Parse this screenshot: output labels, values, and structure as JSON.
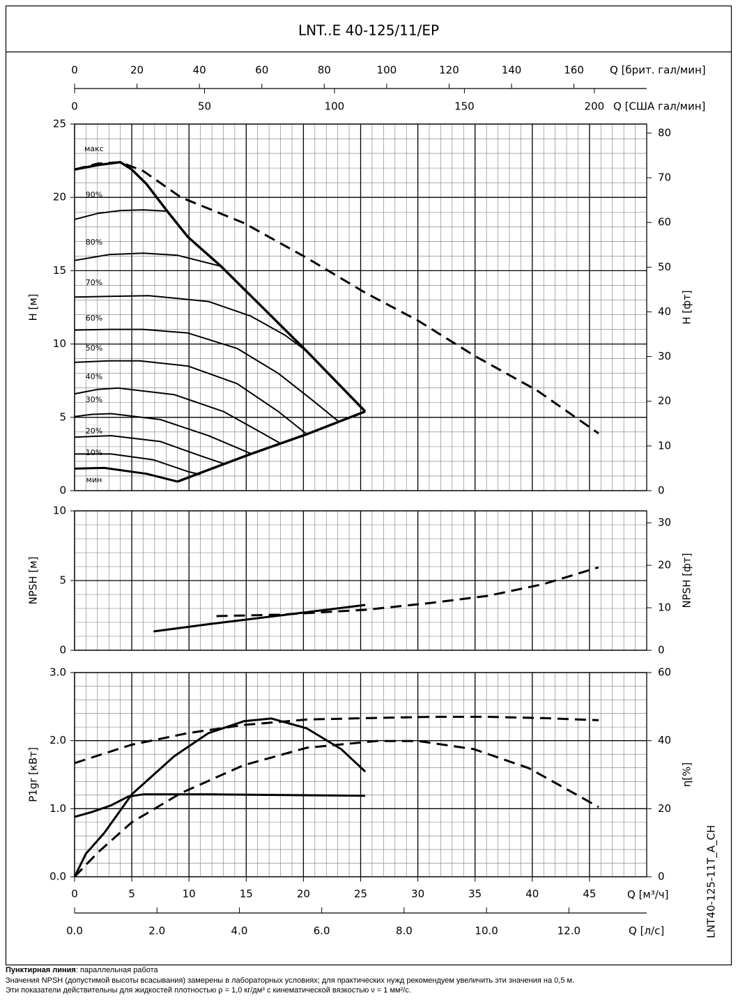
{
  "title": "LNT..E 40-125/11/EP",
  "chart_data": [
    {
      "type": "line",
      "color": "#000000",
      "ylabel": "H [м]",
      "y2label": "H [фт]",
      "grid": true,
      "xlim": [
        0,
        50
      ],
      "xticks": [
        0,
        5,
        10,
        15,
        20,
        25,
        30,
        35,
        40,
        45
      ],
      "minor_xticks": [
        1,
        2,
        3,
        4,
        6,
        7,
        8,
        9,
        11,
        12,
        13,
        14,
        16,
        17,
        18,
        19,
        21,
        22,
        23,
        24,
        26,
        27,
        28,
        29,
        31,
        32,
        33,
        34,
        36,
        37,
        38,
        39,
        41,
        42,
        43,
        44,
        46,
        47,
        48,
        49
      ],
      "ylim": [
        0,
        25
      ],
      "yticks": [
        0,
        5,
        10,
        15,
        20,
        25
      ],
      "minor_yticks": [
        1,
        2,
        3,
        4,
        6,
        7,
        8,
        9,
        11,
        12,
        13,
        14,
        16,
        17,
        18,
        19,
        21,
        22,
        23,
        24
      ],
      "y2lim": [
        0,
        82.02
      ],
      "y2ticks": [
        0,
        10,
        20,
        30,
        40,
        50,
        60,
        70,
        80
      ],
      "top_axes": [
        {
          "label": "Q [брит. гал/мин]",
          "lim": [
            0,
            183.31
          ],
          "ticks": [
            0,
            20,
            40,
            60,
            80,
            100,
            120,
            140,
            160
          ]
        },
        {
          "label": "Q [США гал/мин]",
          "lim": [
            0,
            220.15
          ],
          "ticks": [
            0,
            50,
            100,
            150,
            200
          ]
        }
      ],
      "series": [
        {
          "name": "макс",
          "x": [
            0,
            2,
            4,
            5,
            6.3
          ],
          "values": [
            21.9,
            22.2,
            22.4,
            21.9,
            20.9
          ],
          "width": 3.5,
          "dash": false
        },
        {
          "name": "90%",
          "x": [
            0,
            2,
            4,
            6,
            8.1
          ],
          "values": [
            18.5,
            18.9,
            19.1,
            19.15,
            19.06
          ],
          "width": 2,
          "dash": false
        },
        {
          "name": "80%",
          "x": [
            0,
            3,
            6,
            9,
            12.8
          ],
          "values": [
            15.7,
            16.1,
            16.2,
            16.05,
            15.3
          ],
          "width": 2,
          "dash": false
        },
        {
          "name": "70%",
          "x": [
            0,
            3,
            6.5,
            11.7,
            15.4,
            18.4,
            20.3
          ],
          "values": [
            13.2,
            13.25,
            13.3,
            12.9,
            11.9,
            10.6,
            9.5
          ],
          "width": 2,
          "dash": false
        },
        {
          "name": "60%",
          "x": [
            0,
            3,
            6,
            9.9,
            14.2,
            17.8,
            20.9,
            23.1
          ],
          "values": [
            10.95,
            11.0,
            11.0,
            10.75,
            9.7,
            8.0,
            6.1,
            4.7
          ],
          "width": 2,
          "dash": false
        },
        {
          "name": "50%",
          "x": [
            0,
            3,
            5.7,
            9.9,
            14.2,
            17.8,
            20.3
          ],
          "values": [
            8.75,
            8.85,
            8.85,
            8.5,
            7.3,
            5.4,
            3.85
          ],
          "width": 2,
          "dash": false
        },
        {
          "name": "40%",
          "x": [
            0,
            2,
            3.8,
            8.7,
            13,
            16,
            18
          ],
          "values": [
            6.6,
            6.9,
            7.0,
            6.55,
            5.4,
            4.1,
            3.22
          ],
          "width": 2,
          "dash": false
        },
        {
          "name": "30%",
          "x": [
            0,
            1.5,
            3.2,
            7.5,
            11.7,
            15.5
          ],
          "values": [
            5.05,
            5.2,
            5.25,
            4.85,
            3.75,
            2.5
          ],
          "width": 2,
          "dash": false
        },
        {
          "name": "20%",
          "x": [
            0,
            3.2,
            7.5,
            11.1,
            13.1
          ],
          "values": [
            3.65,
            3.75,
            3.35,
            2.35,
            1.82
          ],
          "width": 2,
          "dash": false
        },
        {
          "name": "10%",
          "x": [
            0,
            3.2,
            6.9,
            9.9,
            11
          ],
          "values": [
            2.5,
            2.5,
            2.1,
            1.3,
            1.1
          ],
          "width": 2,
          "dash": false
        },
        {
          "name": "мин",
          "x": [
            0,
            2.6,
            6.3,
            9
          ],
          "values": [
            1.5,
            1.55,
            1.15,
            0.62
          ],
          "width": 3,
          "dash": false
        },
        {
          "x": [
            0,
            2,
            4,
            6,
            9.3,
            14.8,
            20.3,
            25.4,
            30,
            34.9,
            40.4,
            45.8
          ],
          "values": [
            21.9,
            22.3,
            22.4,
            21.8,
            20.0,
            18.25,
            15.87,
            13.5,
            11.6,
            9.22,
            6.84,
            3.9
          ],
          "width": 3,
          "dash": true
        },
        {
          "x": [
            6.3,
            8.1,
            9.9,
            12.8,
            20.3,
            25.4
          ],
          "values": [
            20.9,
            19.06,
            17.3,
            15.3,
            9.5,
            5.4
          ],
          "width": 3.5,
          "dash": false
        },
        {
          "x": [
            9.0,
            10.8,
            15.4,
            20.3,
            25.4
          ],
          "values": [
            0.62,
            1.15,
            2.5,
            3.85,
            5.4
          ],
          "width": 3.5,
          "dash": false
        }
      ]
    },
    {
      "type": "line",
      "color": "#000000",
      "ylabel": "NPSH [м]",
      "y2label": "NPSH [фт]",
      "grid": true,
      "xlim": [
        0,
        50
      ],
      "xticks": [
        0,
        5,
        10,
        15,
        20,
        25,
        30,
        35,
        40,
        45
      ],
      "minor_xticks": [
        1,
        2,
        3,
        4,
        6,
        7,
        8,
        9,
        11,
        12,
        13,
        14,
        16,
        17,
        18,
        19,
        21,
        22,
        23,
        24,
        26,
        27,
        28,
        29,
        31,
        32,
        33,
        34,
        36,
        37,
        38,
        39,
        41,
        42,
        43,
        44,
        46,
        47,
        48,
        49
      ],
      "ylim": [
        0,
        10
      ],
      "yticks": [
        0,
        5,
        10
      ],
      "minor_yticks": [
        1,
        2,
        3,
        4,
        6,
        7,
        8,
        9
      ],
      "y2lim": [
        0,
        32.81
      ],
      "y2ticks": [
        0,
        10,
        20,
        30
      ],
      "series": [
        {
          "x": [
            6.9,
            12,
            18,
            25.4
          ],
          "values": [
            1.35,
            1.9,
            2.5,
            3.25
          ],
          "width": 3,
          "dash": false
        },
        {
          "x": [
            12.4,
            17.8,
            25.4,
            31.2,
            36.1,
            41,
            45.8
          ],
          "values": [
            2.45,
            2.55,
            2.9,
            3.4,
            3.9,
            4.75,
            5.95
          ],
          "width": 3,
          "dash": true
        }
      ]
    },
    {
      "type": "line",
      "color": "#000000",
      "ylabel": "P1gr [кВт]",
      "y2label": "η[%]",
      "xlabel": "Q [м³/ч]",
      "grid": true,
      "xlim": [
        0,
        50
      ],
      "xticks": [
        0,
        5,
        10,
        15,
        20,
        25,
        30,
        35,
        40,
        45
      ],
      "minor_xticks": [
        1,
        2,
        3,
        4,
        6,
        7,
        8,
        9,
        11,
        12,
        13,
        14,
        16,
        17,
        18,
        19,
        21,
        22,
        23,
        24,
        26,
        27,
        28,
        29,
        31,
        32,
        33,
        34,
        36,
        37,
        38,
        39,
        41,
        42,
        43,
        44,
        46,
        47,
        48,
        49
      ],
      "ylim": [
        0,
        3.0
      ],
      "yticks": [
        {
          "value": 0,
          "label": "0.0"
        },
        {
          "value": 1,
          "label": "1.0"
        },
        {
          "value": 2,
          "label": "2.0"
        },
        {
          "value": 3,
          "label": "3.0"
        }
      ],
      "minor_yticks": [
        0.2,
        0.4,
        0.6,
        0.8,
        1.2,
        1.4,
        1.6,
        1.8,
        2.2,
        2.4,
        2.6,
        2.8
      ],
      "y2lim": [
        0,
        60
      ],
      "y2ticks": [
        0,
        20,
        40,
        60
      ],
      "bottom_axes": [
        {
          "label": "Q [л/с]",
          "lim": [
            0,
            13.889
          ],
          "ticks": [
            {
              "value": 0,
              "label": "0.0"
            },
            {
              "value": 2,
              "label": "2.0"
            },
            {
              "value": 4,
              "label": "4.0"
            },
            {
              "value": 6,
              "label": "6.0"
            },
            {
              "value": 8,
              "label": "8.0"
            },
            {
              "value": 10,
              "label": "10.0"
            },
            {
              "value": 12,
              "label": "12.0"
            }
          ]
        }
      ],
      "series": [
        {
          "x": [
            0,
            1.5,
            3.2,
            4.7,
            6,
            11.7,
            25.4
          ],
          "values": [
            0.88,
            0.95,
            1.05,
            1.18,
            1.21,
            1.21,
            1.19
          ],
          "width": 3,
          "dash": false
        },
        {
          "x": [
            0,
            5,
            9.9,
            14.8,
            20.3,
            25.4,
            31.2,
            36.1,
            41,
            45.8
          ],
          "values": [
            1.67,
            1.94,
            2.11,
            2.23,
            2.31,
            2.33,
            2.35,
            2.35,
            2.33,
            2.3
          ],
          "width": 3,
          "dash": true
        },
        {
          "axis": "y2",
          "x": [
            0,
            1,
            2.6,
            5,
            8.7,
            11.7,
            14.8,
            17.2,
            20.3,
            23.3,
            25.4
          ],
          "values": [
            0,
            6.8,
            12.9,
            24.2,
            35.4,
            42.2,
            45.7,
            46.5,
            43.6,
            37.5,
            30.9
          ],
          "width": 3,
          "dash": false
        },
        {
          "axis": "y2",
          "x": [
            0,
            2,
            5,
            9.3,
            14.8,
            20.3,
            26.4,
            30,
            34.9,
            39.7,
            45.8
          ],
          "values": [
            0,
            7,
            16.0,
            24.6,
            32.8,
            37.9,
            39.9,
            39.9,
            37.5,
            31.9,
            20.5
          ],
          "width": 3,
          "dash": true
        }
      ]
    }
  ],
  "code": "LNT40-125-11T_A_CH",
  "footer": {
    "term": "Пунктирная линия",
    "term_text": ": параллельная работа",
    "notes": [
      "Значения NPSH (допустимой высоты всасывания) замерены в лабораторных условиях; для практических нужд рекомендуем увеличить эти значения на 0,5 м.",
      "Эти показатели действительны для жидкостей плотностью ρ = 1,0 кг/дм³ с кинематической вязкостью ν = 1 мм²/с."
    ]
  }
}
